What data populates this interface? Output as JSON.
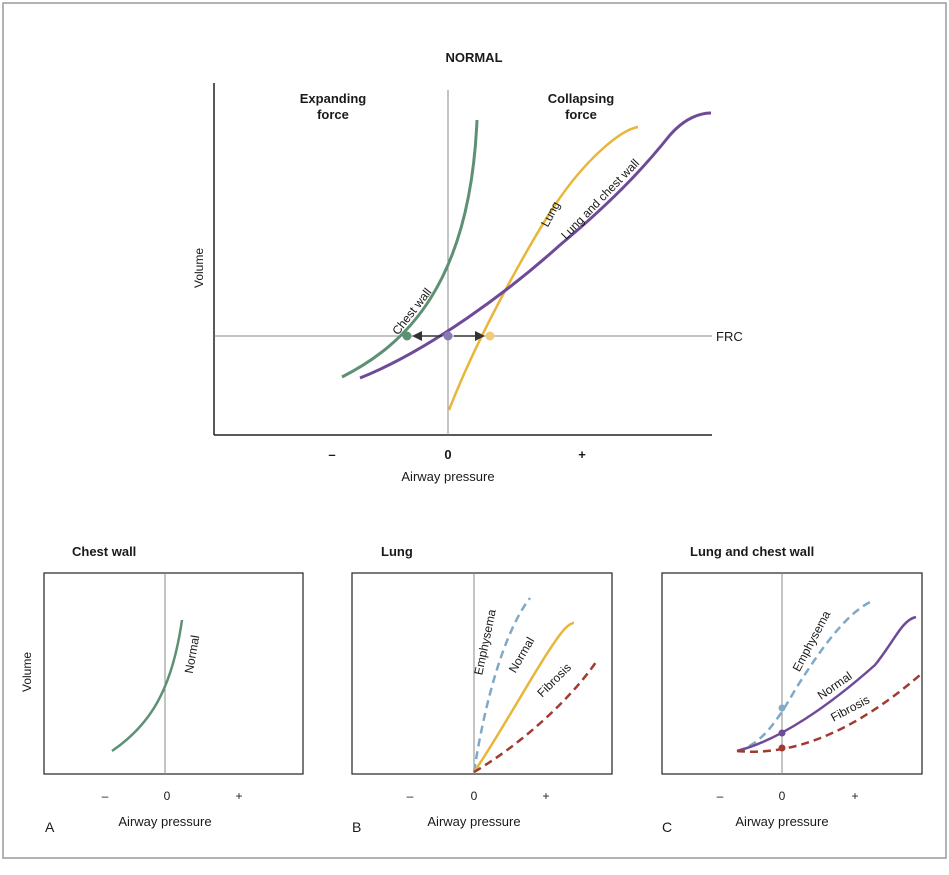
{
  "main": {
    "title": "NORMAL",
    "expanding_line1": "Expanding",
    "expanding_line2": "force",
    "collapsing_line1": "Collapsing",
    "collapsing_line2": "force",
    "ylabel": "Volume",
    "xlabel": "Airway pressure",
    "tick_minus": "–",
    "tick_zero": "0",
    "tick_plus": "+",
    "frc_label": "FRC",
    "curve_chest_wall": "Chest wall",
    "curve_lung": "Lung",
    "curve_lung_and_chest_wall": "Lung and chest wall"
  },
  "panels": [
    {
      "title": "Chest wall",
      "letter": "A",
      "ylabel": "Volume",
      "xlabel": "Airway pressure",
      "tick_minus": "–",
      "tick_zero": "0",
      "tick_plus": "+",
      "curves": [
        "Normal"
      ]
    },
    {
      "title": "Lung",
      "letter": "B",
      "xlabel": "Airway pressure",
      "tick_minus": "–",
      "tick_zero": "0",
      "tick_plus": "+",
      "curves": [
        "Emphysema",
        "Normal",
        "Fibrosis"
      ]
    },
    {
      "title": "Lung and chest wall",
      "letter": "C",
      "xlabel": "Airway pressure",
      "tick_minus": "–",
      "tick_zero": "0",
      "tick_plus": "+",
      "curves": [
        "Emphysema",
        "Normal",
        "Fibrosis"
      ]
    }
  ],
  "colors": {
    "chest_wall": "#5e9074",
    "lung": "#e8b63a",
    "lung_and_chest_wall": "#6f4a97",
    "emphysema": "#7fa9c6",
    "fibrosis": "#a23a32",
    "axis": "#888888",
    "frame": "#222222",
    "border": "#9a9a9a"
  }
}
